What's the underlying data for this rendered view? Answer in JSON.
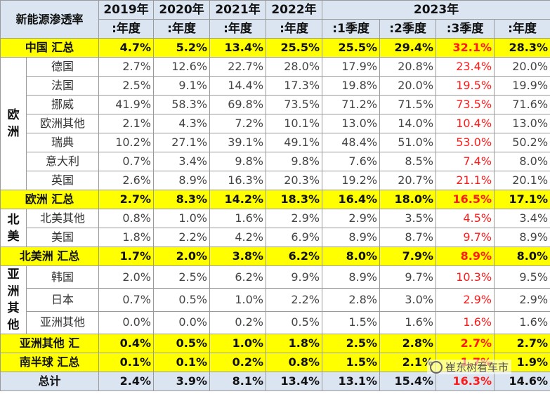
{
  "header": {
    "title": "新能源渗透率",
    "years": [
      "2019年",
      "2020年",
      "2021年",
      "2022年"
    ],
    "year2023": "2023年",
    "periods": [
      ":年度",
      ":年度",
      ":年度",
      ":年度",
      ":1季度",
      ":2季度",
      ":3季度",
      ":年度"
    ]
  },
  "china_total": {
    "label": "中国 汇总",
    "values": [
      "4.7%",
      "5.2%",
      "13.4%",
      "25.5%",
      "25.5%",
      "29.4%",
      "32.1%",
      "28.3%"
    ]
  },
  "europe": {
    "region_label": "欧洲",
    "rows": [
      {
        "name": "德国",
        "values": [
          "2.7%",
          "12.6%",
          "22.7%",
          "28.0%",
          "17.9%",
          "20.8%",
          "23.4%",
          "20.0%"
        ]
      },
      {
        "name": "法国",
        "values": [
          "2.5%",
          "9.1%",
          "14.4%",
          "17.3%",
          "19.8%",
          "20.0%",
          "19.5%",
          "19.9%"
        ]
      },
      {
        "name": "挪威",
        "values": [
          "41.9%",
          "58.3%",
          "69.8%",
          "73.5%",
          "71.2%",
          "71.5%",
          "73.5%",
          "71.6%"
        ]
      },
      {
        "name": "欧洲其他",
        "values": [
          "2.1%",
          "4.3%",
          "7.2%",
          "10.1%",
          "13.0%",
          "14.0%",
          "10.4%",
          "13.0%"
        ]
      },
      {
        "name": "瑞典",
        "values": [
          "10.2%",
          "27.1%",
          "39.1%",
          "49.1%",
          "48.4%",
          "51.0%",
          "53.0%",
          "50.2%"
        ]
      },
      {
        "name": "意大利",
        "values": [
          "0.7%",
          "3.4%",
          "9.8%",
          "9.8%",
          "7.6%",
          "8.5%",
          "7.4%",
          "8.0%"
        ]
      },
      {
        "name": "英国",
        "values": [
          "2.6%",
          "8.9%",
          "16.3%",
          "20.3%",
          "19.2%",
          "20.7%",
          "21.1%",
          "20.1%"
        ]
      }
    ],
    "total": {
      "label": "欧洲 汇总",
      "values": [
        "2.7%",
        "8.3%",
        "14.2%",
        "18.3%",
        "16.4%",
        "18.0%",
        "16.5%",
        "17.1%"
      ]
    }
  },
  "north_america": {
    "region_label": "北美",
    "rows": [
      {
        "name": "北美其他",
        "values": [
          "0.8%",
          "1.0%",
          "1.6%",
          "2.9%",
          "2.9%",
          "3.5%",
          "4.5%",
          "3.4%"
        ]
      },
      {
        "name": "美国",
        "values": [
          "1.8%",
          "2.2%",
          "4.2%",
          "6.9%",
          "8.9%",
          "8.7%",
          "9.7%",
          "8.9%"
        ]
      }
    ],
    "total": {
      "label": "北美洲 汇总",
      "values": [
        "1.7%",
        "2.0%",
        "3.8%",
        "6.2%",
        "8.0%",
        "7.9%",
        "8.9%",
        "8.0%"
      ]
    }
  },
  "asia_other": {
    "region_label": "亚洲其他",
    "rows": [
      {
        "name": "韩国",
        "values": [
          "2.0%",
          "2.5%",
          "6.2%",
          "9.9%",
          "8.9%",
          "9.7%",
          "10.3%",
          "9.5%"
        ]
      },
      {
        "name": "日本",
        "values": [
          "0.7%",
          "0.5%",
          "1.0%",
          "2.2%",
          "2.8%",
          "3.0%",
          "2.9%",
          "2.9%"
        ]
      },
      {
        "name": "亚洲其他",
        "values": [
          "0.0%",
          "0.0%",
          "0.2%",
          "0.5%",
          "1.5%",
          "1.6%",
          "1.6%",
          "1.6%"
        ]
      }
    ],
    "total": {
      "label": "亚洲其他 汇",
      "values": [
        "0.4%",
        "0.5%",
        "1.0%",
        "1.8%",
        "2.5%",
        "2.8%",
        "2.7%",
        "2.7%"
      ]
    }
  },
  "south_total": {
    "label": "南半球 汇总",
    "values": [
      "0.1%",
      "0.1%",
      "0.2%",
      "0.8%",
      "1.5%",
      "2.1%",
      "1.7%",
      "1.9%"
    ]
  },
  "grand_total": {
    "label": "总计",
    "values": [
      "2.4%",
      "3.9%",
      "8.1%",
      "13.4%",
      "13.1%",
      "15.4%",
      "16.3%",
      "14.6%"
    ]
  },
  "watermark": "崔东树看车市",
  "colors": {
    "highlight": "#ffff00",
    "header_bg": "#dbe5f2",
    "q3_text": "#ff1a1a"
  }
}
